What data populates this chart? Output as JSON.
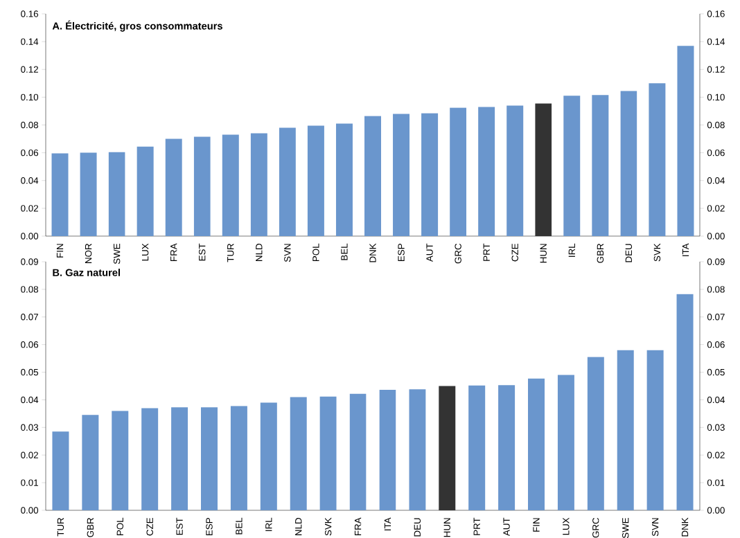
{
  "chart_data": [
    {
      "type": "bar",
      "title": "A. Électricité, gros consommateurs",
      "categories": [
        "FIN",
        "NOR",
        "SWE",
        "LUX",
        "FRA",
        "EST",
        "TUR",
        "NLD",
        "SVN",
        "POL",
        "BEL",
        "DNK",
        "ESP",
        "AUT",
        "GRC",
        "PRT",
        "CZE",
        "HUN",
        "IRL",
        "GBR",
        "DEU",
        "SVK",
        "ITA"
      ],
      "values": [
        0.0595,
        0.06,
        0.0605,
        0.0645,
        0.07,
        0.0715,
        0.073,
        0.074,
        0.078,
        0.0795,
        0.081,
        0.0865,
        0.088,
        0.0885,
        0.0925,
        0.093,
        0.094,
        0.0955,
        0.101,
        0.1015,
        0.1045,
        0.11,
        0.137
      ],
      "colors": [
        "#6a96cd",
        "#6a96cd",
        "#6a96cd",
        "#6a96cd",
        "#6a96cd",
        "#6a96cd",
        "#6a96cd",
        "#6a96cd",
        "#6a96cd",
        "#6a96cd",
        "#6a96cd",
        "#6a96cd",
        "#6a96cd",
        "#6a96cd",
        "#6a96cd",
        "#6a96cd",
        "#6a96cd",
        "#333333",
        "#6a96cd",
        "#6a96cd",
        "#6a96cd",
        "#6a96cd",
        "#6a96cd"
      ],
      "ylim": [
        0,
        0.16
      ],
      "yticks": [
        {
          "value": 0,
          "label": "0.00"
        },
        {
          "value": 0.02,
          "label": "0.02"
        },
        {
          "value": 0.04,
          "label": "0.04"
        },
        {
          "value": 0.06,
          "label": "0.06"
        },
        {
          "value": 0.08,
          "label": "0.08"
        },
        {
          "value": 0.1,
          "label": "0.10"
        },
        {
          "value": 0.12,
          "label": "0.12"
        },
        {
          "value": 0.14,
          "label": "0.14"
        },
        {
          "value": 0.16,
          "label": "0.16"
        }
      ],
      "y2lim": [
        0,
        0.16
      ],
      "y2ticks": [
        {
          "value": 0,
          "label": "0.00"
        },
        {
          "value": 0.02,
          "label": "0.02"
        },
        {
          "value": 0.04,
          "label": "0.04"
        },
        {
          "value": 0.06,
          "label": "0.06"
        },
        {
          "value": 0.08,
          "label": "0.08"
        },
        {
          "value": 0.1,
          "label": "0.10"
        },
        {
          "value": 0.12,
          "label": "0.12"
        },
        {
          "value": 0.14,
          "label": "0.14"
        },
        {
          "value": 0.16,
          "label": "0.16"
        }
      ]
    },
    {
      "type": "bar",
      "title": "B. Gaz naturel",
      "categories": [
        "TUR",
        "GBR",
        "POL",
        "CZE",
        "EST",
        "ESP",
        "BEL",
        "IRL",
        "NLD",
        "SVK",
        "FRA",
        "ITA",
        "DEU",
        "HUN",
        "PRT",
        "AUT",
        "FIN",
        "LUX",
        "GRC",
        "SWE",
        "SVN",
        "DNK"
      ],
      "values": [
        0.0285,
        0.0345,
        0.036,
        0.037,
        0.0373,
        0.0373,
        0.0378,
        0.039,
        0.041,
        0.0412,
        0.0422,
        0.0436,
        0.0438,
        0.045,
        0.0452,
        0.0453,
        0.0477,
        0.049,
        0.0555,
        0.058,
        0.058,
        0.0783
      ],
      "colors": [
        "#6a96cd",
        "#6a96cd",
        "#6a96cd",
        "#6a96cd",
        "#6a96cd",
        "#6a96cd",
        "#6a96cd",
        "#6a96cd",
        "#6a96cd",
        "#6a96cd",
        "#6a96cd",
        "#6a96cd",
        "#6a96cd",
        "#333333",
        "#6a96cd",
        "#6a96cd",
        "#6a96cd",
        "#6a96cd",
        "#6a96cd",
        "#6a96cd",
        "#6a96cd",
        "#6a96cd"
      ],
      "ylim": [
        0,
        0.09
      ],
      "yticks": [
        {
          "value": 0,
          "label": "0.00"
        },
        {
          "value": 0.01,
          "label": "0.01"
        },
        {
          "value": 0.02,
          "label": "0.02"
        },
        {
          "value": 0.03,
          "label": "0.03"
        },
        {
          "value": 0.04,
          "label": "0.04"
        },
        {
          "value": 0.05,
          "label": "0.05"
        },
        {
          "value": 0.06,
          "label": "0.06"
        },
        {
          "value": 0.07,
          "label": "0.07"
        },
        {
          "value": 0.08,
          "label": "0.08"
        },
        {
          "value": 0.09,
          "label": "0.09"
        }
      ],
      "y2lim": [
        0,
        0.09
      ],
      "y2ticks": [
        {
          "value": 0,
          "label": "0.00"
        },
        {
          "value": 0.01,
          "label": "0.01"
        },
        {
          "value": 0.02,
          "label": "0.02"
        },
        {
          "value": 0.03,
          "label": "0.03"
        },
        {
          "value": 0.04,
          "label": "0.04"
        },
        {
          "value": 0.05,
          "label": "0.05"
        },
        {
          "value": 0.06,
          "label": "0.06"
        },
        {
          "value": 0.07,
          "label": "0.07"
        },
        {
          "value": 0.08,
          "label": "0.08"
        },
        {
          "value": 0.09,
          "label": "0.09"
        }
      ]
    }
  ]
}
